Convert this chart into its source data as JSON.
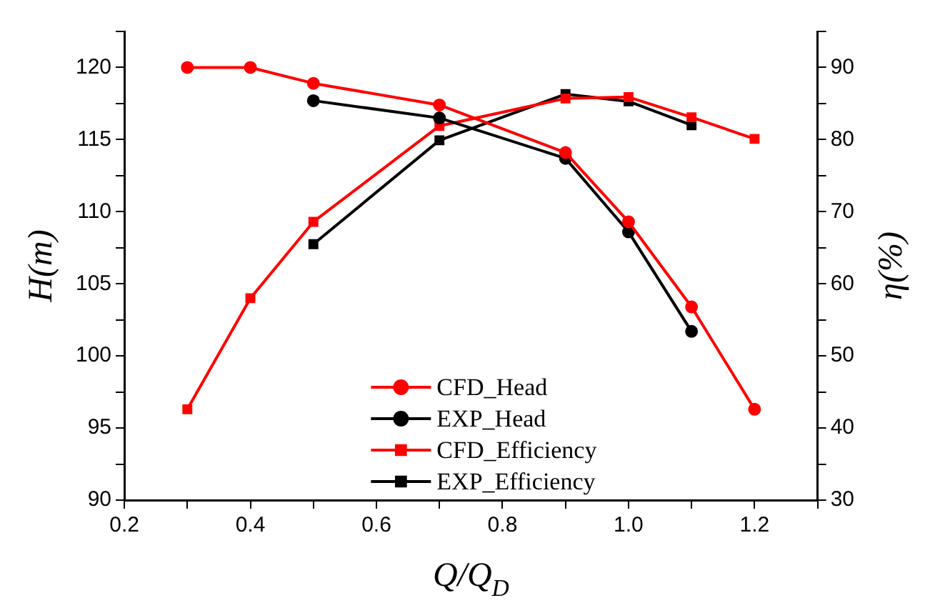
{
  "chart_data": {
    "type": "line",
    "xlabel": "Q/Q$_{D}$",
    "ylabel": "H(m)",
    "y2label": "η(%)",
    "xlim": [
      0.2,
      1.3
    ],
    "xticks": [
      0.2,
      {
        "value": 0.3,
        "label": null
      },
      0.4,
      {
        "value": 0.5,
        "label": null
      },
      0.6,
      {
        "value": 0.7,
        "label": null
      },
      0.8,
      {
        "value": 0.9,
        "label": null
      },
      {
        "value": 1.0,
        "label": "1.0"
      },
      {
        "value": 1.1,
        "label": null
      },
      1.2,
      {
        "value": 1.3,
        "label": null
      }
    ],
    "ylim": [
      90,
      122.5
    ],
    "yticks": [
      90,
      {
        "value": 92.5,
        "label": null
      },
      95,
      {
        "value": 97.5,
        "label": null
      },
      100,
      {
        "value": 102.5,
        "label": null
      },
      105,
      {
        "value": 107.5,
        "label": null
      },
      110,
      {
        "value": 112.5,
        "label": null
      },
      115,
      {
        "value": 117.5,
        "label": null
      },
      120,
      {
        "value": 122.5,
        "label": null
      }
    ],
    "y2lim": [
      30,
      95
    ],
    "y2ticks": [
      30,
      {
        "value": 35,
        "label": null
      },
      40,
      {
        "value": 45,
        "label": null
      },
      50,
      {
        "value": 55,
        "label": null
      },
      60,
      {
        "value": 65,
        "label": null
      },
      70,
      {
        "value": 75,
        "label": null
      },
      80,
      {
        "value": 85,
        "label": null
      },
      90,
      {
        "value": 95,
        "label": null
      }
    ],
    "grid": false,
    "legend": "bottom",
    "line_style": "solid",
    "series": [
      {
        "name": "CFD_Head",
        "color": "#ff0000",
        "marker": "circle",
        "x": [
          0.3,
          0.4,
          0.5,
          0.7,
          0.9,
          1.0,
          1.1,
          1.2
        ],
        "values": [
          120,
          120,
          118.9,
          117.4,
          114.1,
          109.3,
          103.4,
          96.3
        ]
      },
      {
        "name": "EXP_Head",
        "color": "#000000",
        "marker": "circle",
        "x": [
          0.5,
          0.7,
          0.9,
          1.0,
          1.1
        ],
        "values": [
          117.7,
          116.5,
          113.7,
          108.6,
          101.7
        ]
      },
      {
        "name": "CFD_Efficiency",
        "color": "#ff0000",
        "marker": "square",
        "axis": "y2",
        "x": [
          0.3,
          0.4,
          0.5,
          0.7,
          0.9,
          1.0,
          1.1,
          1.2
        ],
        "values": [
          42.6,
          58.0,
          68.6,
          81.9,
          85.7,
          85.9,
          83.1,
          80.1
        ]
      },
      {
        "name": "EXP_Efficiency",
        "color": "#000000",
        "marker": "square",
        "axis": "y2",
        "x": [
          0.5,
          0.7,
          0.9,
          1.0,
          1.1
        ],
        "values": [
          65.5,
          79.9,
          86.3,
          85.3,
          82.0
        ]
      }
    ]
  }
}
